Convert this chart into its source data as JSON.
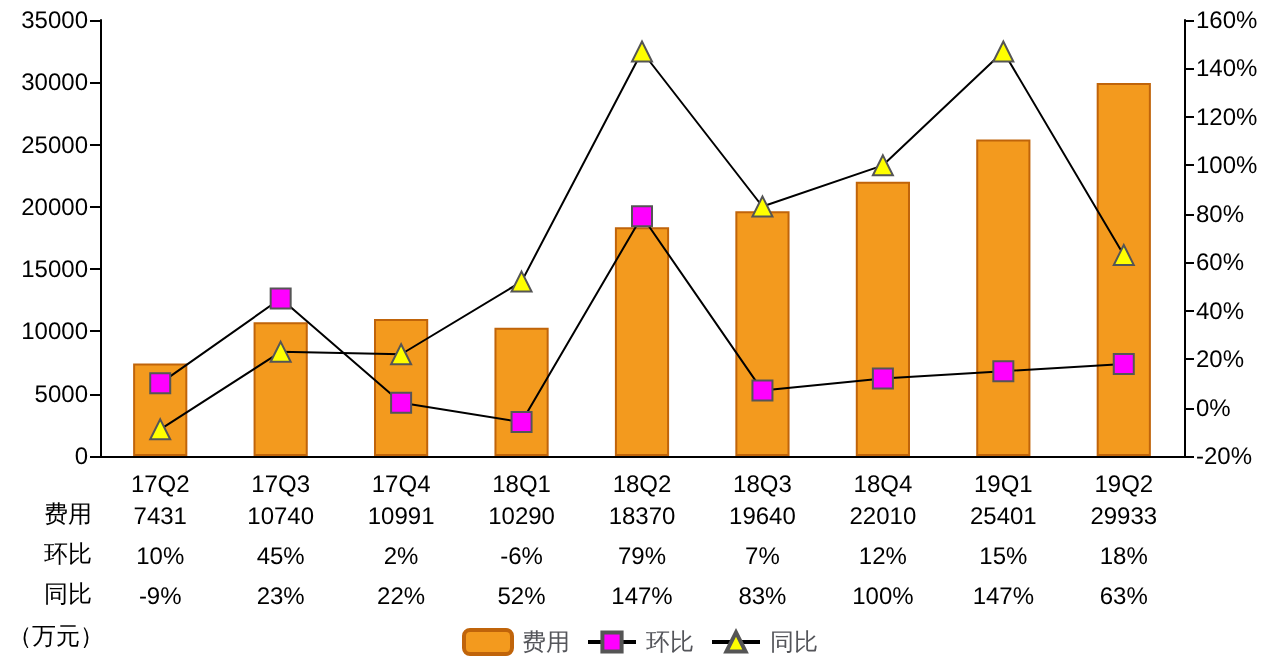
{
  "chart_data": {
    "type": "bar",
    "categories": [
      "17Q2",
      "17Q3",
      "17Q4",
      "18Q1",
      "18Q2",
      "18Q3",
      "18Q4",
      "19Q1",
      "19Q2"
    ],
    "series": [
      {
        "name": "费用",
        "color": "#f39a1e",
        "values": [
          7431,
          10740,
          10991,
          10290,
          18370,
          19640,
          22010,
          25401,
          29933
        ],
        "value_labels": [
          "7431",
          "10740",
          "10991",
          "10290",
          "18370",
          "19640",
          "22010",
          "25401",
          "29933"
        ]
      },
      {
        "name": "环比",
        "type": "line",
        "axis": "y2",
        "marker": "square",
        "color": "#ff00ff",
        "values": [
          10,
          45,
          2,
          -6,
          79,
          7,
          12,
          15,
          18
        ],
        "value_labels": [
          "10%",
          "45%",
          "2%",
          "-6%",
          "79%",
          "7%",
          "12%",
          "15%",
          "18%"
        ]
      },
      {
        "name": "同比",
        "type": "line",
        "axis": "y2",
        "marker": "triangle",
        "color": "#ffff00",
        "values": [
          -9,
          23,
          22,
          52,
          147,
          83,
          100,
          147,
          63
        ],
        "value_labels": [
          "-9%",
          "23%",
          "22%",
          "52%",
          "147%",
          "83%",
          "100%",
          "147%",
          "63%"
        ]
      }
    ],
    "ylim": [
      0,
      35000
    ],
    "yticks": [
      0,
      5000,
      10000,
      15000,
      20000,
      25000,
      30000,
      35000
    ],
    "y2lim": [
      -20,
      160
    ],
    "y2ticks": [
      {
        "value": -20,
        "label": "-20%"
      },
      {
        "value": 0,
        "label": "0%"
      },
      {
        "value": 20,
        "label": "20%"
      },
      {
        "value": 40,
        "label": "40%"
      },
      {
        "value": 60,
        "label": "60%"
      },
      {
        "value": 80,
        "label": "80%"
      },
      {
        "value": 100,
        "label": "100%"
      },
      {
        "value": 120,
        "label": "120%"
      },
      {
        "value": 140,
        "label": "140%"
      },
      {
        "value": 160,
        "label": "160%"
      }
    ],
    "legend": "bottom",
    "annotations": [
      "（万元）"
    ]
  }
}
